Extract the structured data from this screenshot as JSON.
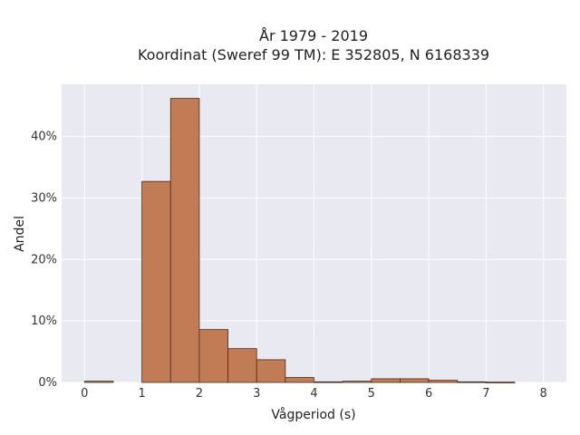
{
  "chart_data": {
    "type": "bar",
    "title_line1": "År 1979 - 2019",
    "title_line2": "Koordinat (Sweref 99 TM): E 352805, N 6168339",
    "xlabel": "Vågperiod (s)",
    "ylabel": "Andel",
    "xlim": [
      -0.4,
      8.4
    ],
    "ylim": [
      0,
      48.5
    ],
    "xticks": [
      0,
      1,
      2,
      3,
      4,
      5,
      6,
      7,
      8
    ],
    "yticks": [
      0,
      10,
      20,
      30,
      40
    ],
    "ytick_labels": [
      "0%",
      "10%",
      "20%",
      "30%",
      "40%"
    ],
    "bin_width": 0.5,
    "bins": [
      {
        "start": 0.0,
        "value": 0.2
      },
      {
        "start": 0.5,
        "value": 0.0
      },
      {
        "start": 1.0,
        "value": 32.7
      },
      {
        "start": 1.5,
        "value": 46.2
      },
      {
        "start": 2.0,
        "value": 8.6
      },
      {
        "start": 2.5,
        "value": 5.5
      },
      {
        "start": 3.0,
        "value": 3.7
      },
      {
        "start": 3.5,
        "value": 0.8
      },
      {
        "start": 4.0,
        "value": 0.1
      },
      {
        "start": 4.5,
        "value": 0.2
      },
      {
        "start": 5.0,
        "value": 0.6
      },
      {
        "start": 5.5,
        "value": 0.6
      },
      {
        "start": 6.0,
        "value": 0.35
      },
      {
        "start": 6.5,
        "value": 0.1
      },
      {
        "start": 7.0,
        "value": 0.05
      }
    ],
    "grid": true,
    "colors": {
      "bar": "#c17c55",
      "bar_edge": "#4a2a1a",
      "plot_bg": "#e9e9f1",
      "grid": "#ffffff"
    }
  }
}
